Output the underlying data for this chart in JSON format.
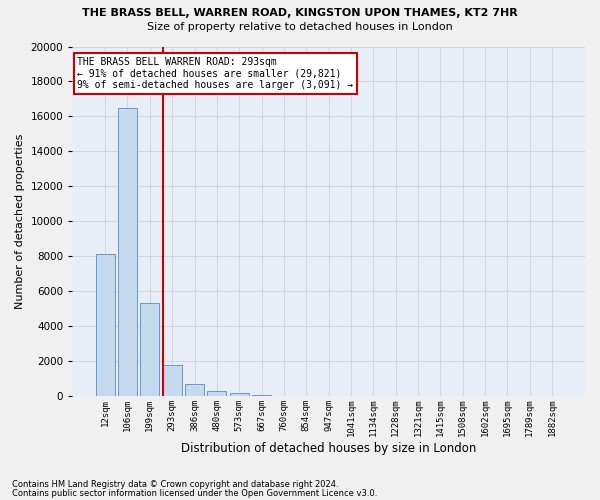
{
  "title": "THE BRASS BELL, WARREN ROAD, KINGSTON UPON THAMES, KT2 7HR",
  "subtitle": "Size of property relative to detached houses in London",
  "xlabel": "Distribution of detached houses by size in London",
  "ylabel": "Number of detached properties",
  "bar_labels": [
    "12sqm",
    "106sqm",
    "199sqm",
    "293sqm",
    "386sqm",
    "480sqm",
    "573sqm",
    "667sqm",
    "760sqm",
    "854sqm",
    "947sqm",
    "1041sqm",
    "1134sqm",
    "1228sqm",
    "1321sqm",
    "1415sqm",
    "1508sqm",
    "1602sqm",
    "1695sqm",
    "1789sqm",
    "1882sqm"
  ],
  "bar_values": [
    8100,
    16500,
    5300,
    1800,
    700,
    280,
    150,
    80,
    30,
    0,
    0,
    0,
    0,
    0,
    0,
    0,
    0,
    0,
    0,
    0,
    0
  ],
  "bar_color": "#c5d9ef",
  "bar_edge_color": "#6699cc",
  "property_bar_index": 3,
  "annotation_title": "THE BRASS BELL WARREN ROAD: 293sqm",
  "annotation_line1": "← 91% of detached houses are smaller (29,821)",
  "annotation_line2": "9% of semi-detached houses are larger (3,091) →",
  "annotation_box_facecolor": "#ffffff",
  "annotation_box_edgecolor": "#cc0000",
  "vline_color": "#cc0000",
  "ylim": [
    0,
    20000
  ],
  "yticks": [
    0,
    2000,
    4000,
    6000,
    8000,
    10000,
    12000,
    14000,
    16000,
    18000,
    20000
  ],
  "grid_color": "#cccccc",
  "bg_color": "#e8eef8",
  "fig_bg_color": "#f0f0f0",
  "footnote1": "Contains HM Land Registry data © Crown copyright and database right 2024.",
  "footnote2": "Contains public sector information licensed under the Open Government Licence v3.0."
}
